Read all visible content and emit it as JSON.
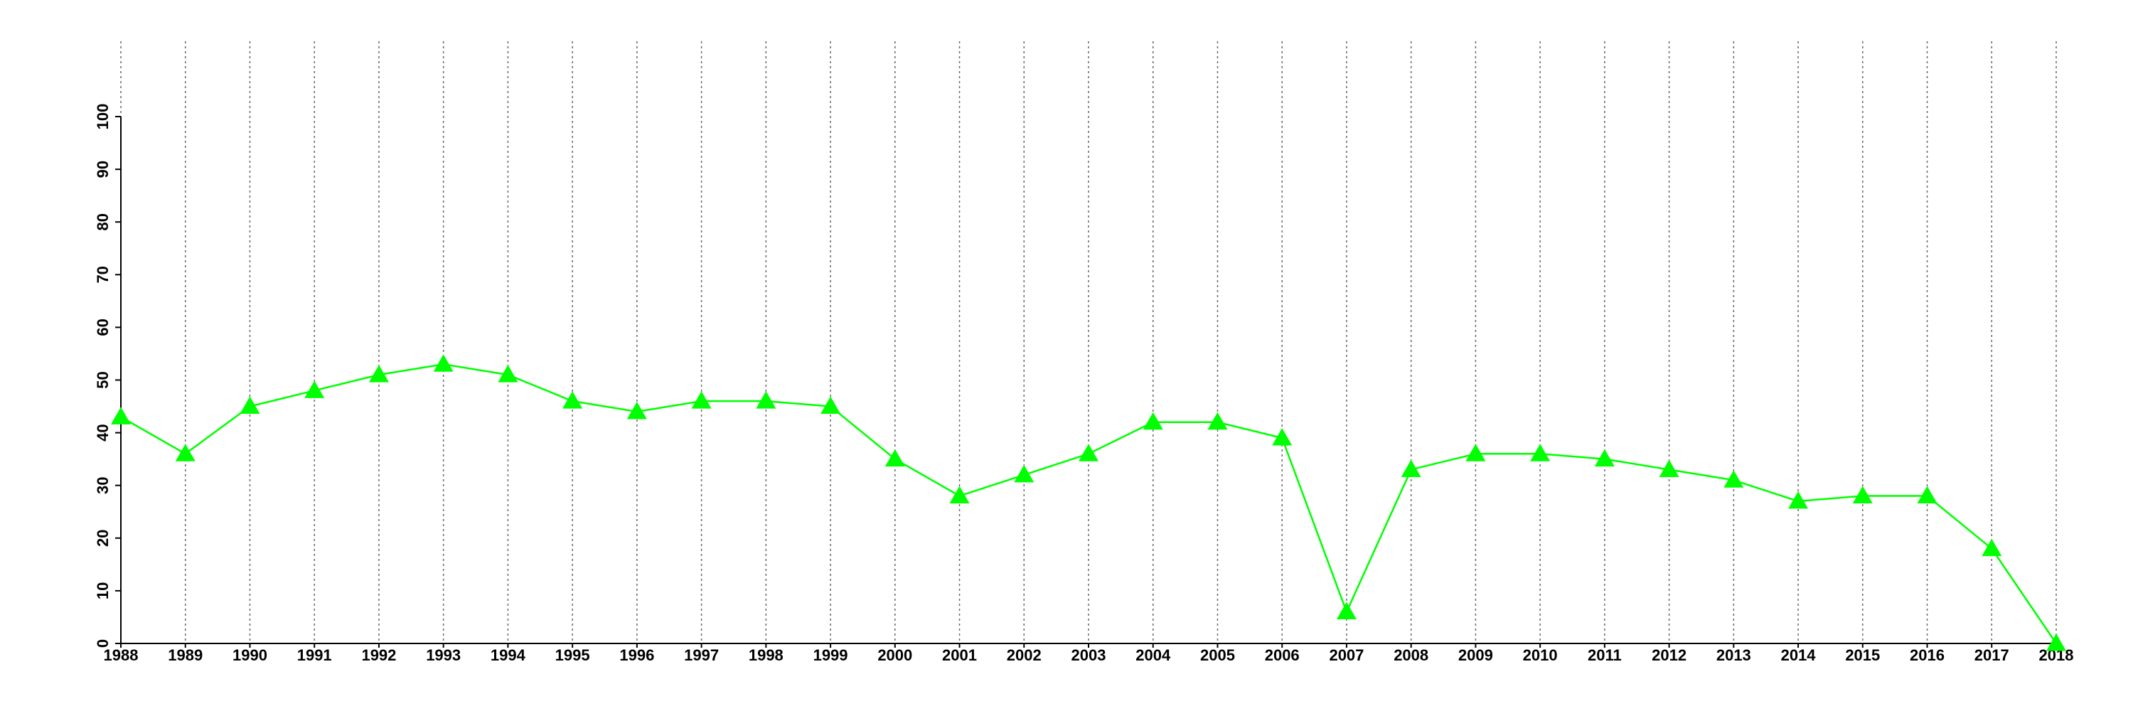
{
  "chart_data": {
    "type": "line",
    "x": [
      1988,
      1989,
      1990,
      1991,
      1992,
      1993,
      1994,
      1995,
      1996,
      1997,
      1998,
      1999,
      2000,
      2001,
      2002,
      2003,
      2004,
      2005,
      2006,
      2007,
      2008,
      2009,
      2010,
      2011,
      2012,
      2013,
      2014,
      2015,
      2016,
      2017,
      2018
    ],
    "values": [
      43,
      36,
      45,
      48,
      51,
      53,
      51,
      46,
      44,
      46,
      46,
      45,
      35,
      28,
      32,
      36,
      42,
      42,
      39,
      6,
      33,
      36,
      36,
      35,
      33,
      31,
      27,
      28,
      28,
      18,
      0
    ],
    "color": "#00ff00",
    "xlim": [
      1988,
      2018
    ],
    "xticks": [
      1988,
      1989,
      1990,
      1991,
      1992,
      1993,
      1994,
      1995,
      1996,
      1997,
      1998,
      1999,
      2000,
      2001,
      2002,
      2003,
      2004,
      2005,
      2006,
      2007,
      2008,
      2009,
      2010,
      2011,
      2012,
      2013,
      2014,
      2015,
      2016,
      2017,
      2018
    ],
    "ylim": [
      0,
      100
    ],
    "yticks": [
      0,
      10,
      20,
      30,
      40,
      50,
      60,
      70,
      80,
      90,
      100
    ],
    "grid": "x",
    "marker": "triangle"
  }
}
